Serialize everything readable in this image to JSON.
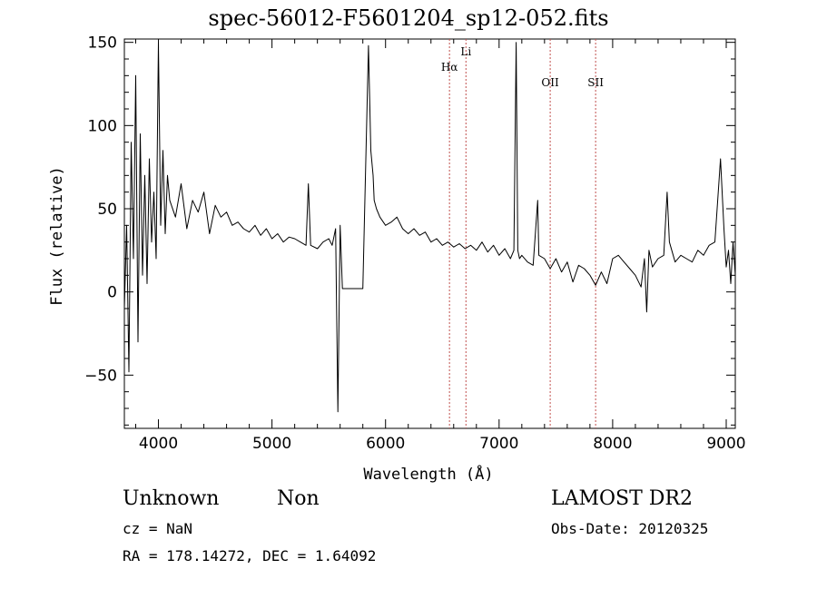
{
  "chart_data": {
    "type": "line",
    "title": "spec-56012-F5601204_sp12-052.fits",
    "xlabel": "Wavelength (Å)",
    "ylabel": "Flux (relative)",
    "xlim": [
      3700,
      9080
    ],
    "ylim": [
      -82,
      152
    ],
    "x_ticks": [
      4000,
      5000,
      6000,
      7000,
      8000,
      9000
    ],
    "y_ticks": [
      -50,
      0,
      50,
      100,
      150
    ],
    "grid": false,
    "series": [
      {
        "x": [
          3700,
          3720,
          3740,
          3760,
          3780,
          3800,
          3820,
          3840,
          3860,
          3880,
          3900,
          3920,
          3940,
          3960,
          3980,
          4000,
          4020,
          4040,
          4060,
          4080,
          4100,
          4150,
          4200,
          4250,
          4300,
          4350,
          4400,
          4450,
          4500,
          4550,
          4600,
          4650,
          4700,
          4750,
          4800,
          4850,
          4900,
          4950,
          5000,
          5050,
          5100,
          5150,
          5200,
          5250,
          5300,
          5320,
          5340,
          5400,
          5450,
          5500,
          5530,
          5560,
          5580,
          5600,
          5620,
          5650,
          5700,
          5750,
          5800,
          5850,
          5870,
          5890,
          5900,
          5920,
          5950,
          6000,
          6050,
          6100,
          6150,
          6200,
          6250,
          6300,
          6350,
          6400,
          6450,
          6500,
          6550,
          6600,
          6650,
          6700,
          6750,
          6800,
          6850,
          6900,
          6950,
          7000,
          7050,
          7100,
          7130,
          7150,
          7165,
          7180,
          7200,
          7250,
          7300,
          7340,
          7350,
          7400,
          7450,
          7500,
          7550,
          7600,
          7650,
          7700,
          7750,
          7800,
          7850,
          7900,
          7950,
          8000,
          8050,
          8100,
          8150,
          8200,
          8250,
          8280,
          8300,
          8320,
          8350,
          8400,
          8450,
          8480,
          8500,
          8550,
          8600,
          8650,
          8700,
          8750,
          8800,
          8850,
          8900,
          8950,
          8980,
          9000,
          9020,
          9040,
          9060,
          9080
        ],
        "y": [
          -10,
          40,
          -48,
          90,
          20,
          130,
          -30,
          95,
          10,
          70,
          5,
          80,
          30,
          60,
          20,
          150,
          40,
          85,
          35,
          70,
          55,
          45,
          65,
          38,
          55,
          48,
          60,
          35,
          52,
          45,
          48,
          40,
          42,
          38,
          36,
          40,
          34,
          38,
          32,
          35,
          30,
          33,
          32,
          30,
          28,
          65,
          28,
          26,
          30,
          32,
          28,
          38,
          -72,
          40,
          2,
          2,
          2,
          2,
          2,
          148,
          85,
          70,
          55,
          50,
          45,
          40,
          42,
          45,
          38,
          35,
          38,
          34,
          36,
          30,
          32,
          28,
          30,
          27,
          29,
          26,
          28,
          25,
          30,
          24,
          28,
          22,
          26,
          20,
          25,
          150,
          25,
          20,
          22,
          18,
          16,
          55,
          22,
          20,
          14,
          20,
          12,
          18,
          6,
          16,
          14,
          10,
          4,
          12,
          5,
          20,
          22,
          18,
          14,
          10,
          3,
          20,
          -12,
          25,
          15,
          20,
          22,
          60,
          30,
          18,
          22,
          20,
          18,
          25,
          22,
          28,
          30,
          80,
          38,
          15,
          25,
          5,
          30,
          10
        ]
      }
    ],
    "annotations": [
      {
        "label": "Hα",
        "x": 6563
      },
      {
        "label": "Li",
        "x": 6708
      },
      {
        "label": "OII",
        "x": 7450
      },
      {
        "label": "SII",
        "x": 7850
      }
    ]
  },
  "info": {
    "class": "Unknown",
    "subclass": "Non",
    "survey": "LAMOST DR2",
    "cz": "cz = NaN",
    "obs_date": "Obs-Date: 20120325",
    "radec": "RA = 178.14272, DEC =    1.64092"
  },
  "colors": {
    "line": "#000000",
    "marker_line": "#c0504d",
    "background": "#ffffff"
  }
}
